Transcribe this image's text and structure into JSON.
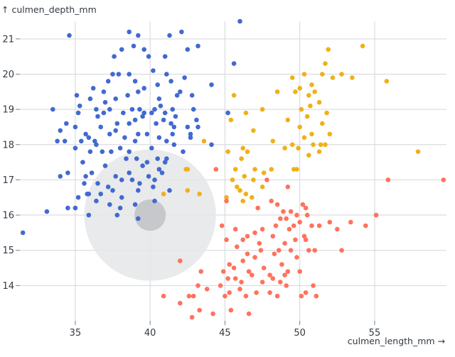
{
  "chart_data": {
    "type": "scatter",
    "xlabel": "culmen_length_mm →",
    "ylabel": "↑ culmen_depth_mm",
    "xlim": [
      31.3,
      59.8
    ],
    "ylim": [
      13.0,
      21.5
    ],
    "x_ticks": [
      35,
      40,
      45,
      50,
      55
    ],
    "y_ticks": [
      14,
      15,
      16,
      17,
      18,
      19,
      20,
      21
    ],
    "grid": true,
    "legend": "none",
    "colors": {
      "blue": "#4269d0",
      "orange": "#efb118",
      "red": "#ff725c",
      "grid": "#d3d6dc",
      "halo": "#e5e6e8",
      "halo_core": "#c6c8cb"
    },
    "highlight": {
      "x": 40.0,
      "y": 16.0,
      "radius_x": 4.4,
      "core_radius_x": 1.05
    },
    "series": [
      {
        "color": "#4269d0",
        "points": [
          [
            34.6,
            21.1
          ],
          [
            38.6,
            21.2
          ],
          [
            39.2,
            21.1
          ],
          [
            41.3,
            21.1
          ],
          [
            42.1,
            21.2
          ],
          [
            46.0,
            21.5
          ],
          [
            38.1,
            20.7
          ],
          [
            38.9,
            20.8
          ],
          [
            39.6,
            20.7
          ],
          [
            42.5,
            20.7
          ],
          [
            37.6,
            20.5
          ],
          [
            39.9,
            20.5
          ],
          [
            41.0,
            20.5
          ],
          [
            43.2,
            20.8
          ],
          [
            45.6,
            20.3
          ],
          [
            37.5,
            20.0
          ],
          [
            37.9,
            20.0
          ],
          [
            38.6,
            20.0
          ],
          [
            40.2,
            20.1
          ],
          [
            41.1,
            20.0
          ],
          [
            42.3,
            19.9
          ],
          [
            37.2,
            19.8
          ],
          [
            39.0,
            19.8
          ],
          [
            41.4,
            19.8
          ],
          [
            36.2,
            19.6
          ],
          [
            36.9,
            19.5
          ],
          [
            39.6,
            19.6
          ],
          [
            40.5,
            19.7
          ],
          [
            39.2,
            19.5
          ],
          [
            44.1,
            19.7
          ],
          [
            35.1,
            19.4
          ],
          [
            36.0,
            19.3
          ],
          [
            37.7,
            19.3
          ],
          [
            38.5,
            19.4
          ],
          [
            41.8,
            19.4
          ],
          [
            42.0,
            19.5
          ],
          [
            42.8,
            19.4
          ],
          [
            35.3,
            19.1
          ],
          [
            37.0,
            19.2
          ],
          [
            40.6,
            19.3
          ],
          [
            33.5,
            19.0
          ],
          [
            34.4,
            18.6
          ],
          [
            35.2,
            18.9
          ],
          [
            36.4,
            19.0
          ],
          [
            36.9,
            18.9
          ],
          [
            37.3,
            19.0
          ],
          [
            38.2,
            18.9
          ],
          [
            38.8,
            19.0
          ],
          [
            39.3,
            19.0
          ],
          [
            39.6,
            18.9
          ],
          [
            40.1,
            18.9
          ],
          [
            40.3,
            19.0
          ],
          [
            40.7,
            19.1
          ],
          [
            41.0,
            18.9
          ],
          [
            41.5,
            19.0
          ],
          [
            41.7,
            18.8
          ],
          [
            42.9,
            19.0
          ],
          [
            43.1,
            18.7
          ],
          [
            36.5,
            18.8
          ],
          [
            37.8,
            18.6
          ],
          [
            38.6,
            18.6
          ],
          [
            39.0,
            18.7
          ],
          [
            39.5,
            18.8
          ],
          [
            40.4,
            18.6
          ],
          [
            40.9,
            18.7
          ],
          [
            41.4,
            18.6
          ],
          [
            35.0,
            18.5
          ],
          [
            35.7,
            18.3
          ],
          [
            36.7,
            18.5
          ],
          [
            37.7,
            18.4
          ],
          [
            38.3,
            18.2
          ],
          [
            39.2,
            18.3
          ],
          [
            39.8,
            18.3
          ],
          [
            40.6,
            18.2
          ],
          [
            41.1,
            18.1
          ],
          [
            41.6,
            18.5
          ],
          [
            42.7,
            18.3
          ],
          [
            43.2,
            18.5
          ],
          [
            34.0,
            18.4
          ],
          [
            35.9,
            18.2
          ],
          [
            36.4,
            18.0
          ],
          [
            37.3,
            18.3
          ],
          [
            39.0,
            18.1
          ],
          [
            41.5,
            18.3
          ],
          [
            42.5,
            18.5
          ],
          [
            45.2,
            18.9
          ],
          [
            33.8,
            18.1
          ],
          [
            34.3,
            18.1
          ],
          [
            35.4,
            18.1
          ],
          [
            36.0,
            17.8
          ],
          [
            36.3,
            18.1
          ],
          [
            37.4,
            17.8
          ],
          [
            38.0,
            17.9
          ],
          [
            38.6,
            17.8
          ],
          [
            40.1,
            17.9
          ],
          [
            41.1,
            17.6
          ],
          [
            41.6,
            18.0
          ],
          [
            42.7,
            18.2
          ],
          [
            44.1,
            18.0
          ],
          [
            35.0,
            17.9
          ],
          [
            35.5,
            17.5
          ],
          [
            36.8,
            17.8
          ],
          [
            38.4,
            17.6
          ],
          [
            39.1,
            17.6
          ],
          [
            39.8,
            17.5
          ],
          [
            40.5,
            17.6
          ],
          [
            35.7,
            17.1
          ],
          [
            36.1,
            17.2
          ],
          [
            37.0,
            17.4
          ],
          [
            37.7,
            17.1
          ],
          [
            38.6,
            17.2
          ],
          [
            39.5,
            17.4
          ],
          [
            39.9,
            17.1
          ],
          [
            40.6,
            17.3
          ],
          [
            41.0,
            17.5
          ],
          [
            42.2,
            17.8
          ],
          [
            34.0,
            17.1
          ],
          [
            34.5,
            17.2
          ],
          [
            35.6,
            16.9
          ],
          [
            36.5,
            16.9
          ],
          [
            37.2,
            16.8
          ],
          [
            38.1,
            17.0
          ],
          [
            38.8,
            17.0
          ],
          [
            39.3,
            16.9
          ],
          [
            40.3,
            17.0
          ],
          [
            40.8,
            17.2
          ],
          [
            35.2,
            16.5
          ],
          [
            35.9,
            16.6
          ],
          [
            36.7,
            16.6
          ],
          [
            37.5,
            16.7
          ],
          [
            38.1,
            16.5
          ],
          [
            39.2,
            16.7
          ],
          [
            40.2,
            16.8
          ],
          [
            41.3,
            16.7
          ],
          [
            35.0,
            16.2
          ],
          [
            35.8,
            16.6
          ],
          [
            36.4,
            16.4
          ],
          [
            37.3,
            16.3
          ],
          [
            38.0,
            16.2
          ],
          [
            39.0,
            16.3
          ],
          [
            40.3,
            16.4
          ],
          [
            33.1,
            16.1
          ],
          [
            34.5,
            16.2
          ],
          [
            35.9,
            16.0
          ],
          [
            37.8,
            16.0
          ],
          [
            39.2,
            15.9
          ],
          [
            31.5,
            15.5
          ]
        ]
      },
      {
        "color": "#efb118",
        "points": [
          [
            51.9,
            20.7
          ],
          [
            54.2,
            20.8
          ],
          [
            51.7,
            20.3
          ],
          [
            52.8,
            20.0
          ],
          [
            50.3,
            20.0
          ],
          [
            51.5,
            20.0
          ],
          [
            53.5,
            19.9
          ],
          [
            49.5,
            19.9
          ],
          [
            52.2,
            19.9
          ],
          [
            55.8,
            19.8
          ],
          [
            50.8,
            19.7
          ],
          [
            50.0,
            19.6
          ],
          [
            51.0,
            19.5
          ],
          [
            48.5,
            19.5
          ],
          [
            49.7,
            19.5
          ],
          [
            50.6,
            19.4
          ],
          [
            45.6,
            19.4
          ],
          [
            47.5,
            19.0
          ],
          [
            50.7,
            19.1
          ],
          [
            51.3,
            19.2
          ],
          [
            46.4,
            18.9
          ],
          [
            50.1,
            19.0
          ],
          [
            51.8,
            18.9
          ],
          [
            49.2,
            18.7
          ],
          [
            50.5,
            18.8
          ],
          [
            51.5,
            18.6
          ],
          [
            50.0,
            18.5
          ],
          [
            45.4,
            18.7
          ],
          [
            50.3,
            18.2
          ],
          [
            48.2,
            18.1
          ],
          [
            49.5,
            18.0
          ],
          [
            50.9,
            18.0
          ],
          [
            46.9,
            18.4
          ],
          [
            52.0,
            18.3
          ],
          [
            49.0,
            17.9
          ],
          [
            50.8,
            18.3
          ],
          [
            51.4,
            18.0
          ],
          [
            43.6,
            18.1
          ],
          [
            45.2,
            17.8
          ],
          [
            46.1,
            17.6
          ],
          [
            46.5,
            17.8
          ],
          [
            46.2,
            17.9
          ],
          [
            47.0,
            17.3
          ],
          [
            48.1,
            17.3
          ],
          [
            49.9,
            17.9
          ],
          [
            49.8,
            17.3
          ],
          [
            51.7,
            18.0
          ],
          [
            50.6,
            17.7
          ],
          [
            51.3,
            17.8
          ],
          [
            57.9,
            17.8
          ],
          [
            42.4,
            17.3
          ],
          [
            42.5,
            17.3
          ],
          [
            45.7,
            17.3
          ],
          [
            46.3,
            17.1
          ],
          [
            46.9,
            17.0
          ],
          [
            47.6,
            17.2
          ],
          [
            49.6,
            17.3
          ],
          [
            45.5,
            17.0
          ],
          [
            46.0,
            16.7
          ],
          [
            45.8,
            16.8
          ],
          [
            46.4,
            16.6
          ],
          [
            45.1,
            16.5
          ],
          [
            46.2,
            16.4
          ],
          [
            46.8,
            16.5
          ],
          [
            47.5,
            16.8
          ],
          [
            42.5,
            16.7
          ],
          [
            43.3,
            16.6
          ],
          [
            40.9,
            16.6
          ]
        ]
      },
      {
        "color": "#ff725c",
        "points": [
          [
            44.4,
            17.3
          ],
          [
            47.8,
            17.0
          ],
          [
            55.9,
            17.0
          ],
          [
            59.6,
            17.0
          ],
          [
            49.2,
            16.8
          ],
          [
            50.2,
            16.3
          ],
          [
            50.4,
            16.2
          ],
          [
            48.1,
            16.4
          ],
          [
            48.5,
            16.3
          ],
          [
            45.1,
            16.4
          ],
          [
            48.9,
            16.1
          ],
          [
            49.4,
            16.1
          ],
          [
            47.2,
            16.2
          ],
          [
            50.5,
            16.0
          ],
          [
            49.8,
            16.0
          ],
          [
            55.1,
            16.0
          ],
          [
            48.7,
            15.9
          ],
          [
            49.1,
            15.9
          ],
          [
            50.0,
            15.8
          ],
          [
            51.3,
            15.7
          ],
          [
            49.6,
            15.7
          ],
          [
            47.5,
            15.6
          ],
          [
            47.0,
            15.5
          ],
          [
            45.7,
            15.6
          ],
          [
            49.3,
            15.6
          ],
          [
            50.3,
            15.4
          ],
          [
            46.5,
            15.4
          ],
          [
            48.2,
            15.4
          ],
          [
            53.4,
            15.8
          ],
          [
            52.0,
            15.8
          ],
          [
            54.4,
            15.7
          ],
          [
            50.8,
            15.7
          ],
          [
            48.4,
            15.7
          ],
          [
            45.1,
            15.3
          ],
          [
            46.2,
            15.3
          ],
          [
            47.3,
            15.2
          ],
          [
            49.0,
            15.2
          ],
          [
            49.7,
            15.3
          ],
          [
            52.5,
            15.6
          ],
          [
            44.8,
            15.7
          ],
          [
            50.4,
            15.3
          ],
          [
            52.8,
            15.0
          ],
          [
            45.8,
            15.1
          ],
          [
            47.4,
            15.0
          ],
          [
            48.6,
            15.0
          ],
          [
            49.4,
            15.0
          ],
          [
            50.6,
            15.0
          ],
          [
            51.0,
            15.0
          ],
          [
            46.5,
            14.9
          ],
          [
            47.0,
            14.8
          ],
          [
            48.3,
            14.9
          ],
          [
            49.8,
            14.8
          ],
          [
            46.2,
            14.7
          ],
          [
            45.3,
            14.6
          ],
          [
            45.6,
            14.5
          ],
          [
            47.6,
            14.5
          ],
          [
            48.8,
            14.6
          ],
          [
            46.8,
            14.3
          ],
          [
            49.2,
            14.4
          ],
          [
            43.4,
            14.4
          ],
          [
            44.9,
            14.4
          ],
          [
            46.6,
            14.4
          ],
          [
            45.2,
            14.2
          ],
          [
            45.7,
            14.2
          ],
          [
            46.1,
            14.1
          ],
          [
            47.5,
            14.1
          ],
          [
            48.2,
            14.2
          ],
          [
            48.7,
            14.1
          ],
          [
            43.2,
            14.0
          ],
          [
            44.7,
            14.0
          ],
          [
            43.8,
            13.9
          ],
          [
            46.0,
            13.9
          ],
          [
            47.1,
            13.8
          ],
          [
            48.5,
            13.7
          ],
          [
            49.1,
            14.0
          ],
          [
            50.9,
            14.0
          ],
          [
            50.1,
            13.7
          ],
          [
            50.4,
            13.8
          ],
          [
            48.0,
            13.8
          ],
          [
            45.3,
            13.8
          ],
          [
            45.0,
            13.7
          ],
          [
            42.9,
            13.7
          ],
          [
            46.4,
            13.7
          ],
          [
            51.1,
            13.7
          ],
          [
            50.0,
            14.4
          ],
          [
            49.0,
            14.3
          ],
          [
            48.0,
            14.3
          ],
          [
            42.0,
            14.7
          ],
          [
            40.9,
            13.7
          ],
          [
            42.6,
            13.7
          ],
          [
            43.3,
            13.3
          ],
          [
            45.4,
            13.3
          ],
          [
            42.0,
            13.5
          ],
          [
            42.8,
            13.1
          ],
          [
            44.2,
            13.2
          ],
          [
            46.6,
            13.2
          ]
        ]
      }
    ]
  }
}
